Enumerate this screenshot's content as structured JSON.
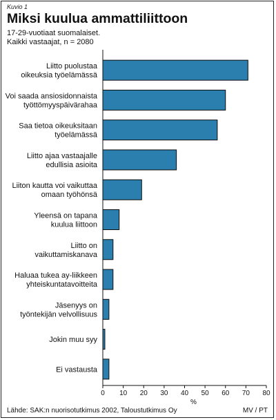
{
  "figure_label": "Kuvio 1",
  "subtitle_lines": [
    "17-29-vuotiaat suomalaiset.",
    "Kaikki vastaajat, n = 2080"
  ],
  "footer": {
    "source": "Lähde: SAK:n nuorisotutkimus 2002, Taloustutkimus Oy",
    "credit": "MV / PT"
  },
  "colors": {
    "bar_fill": "#2a7fae",
    "bar_stroke": "#0d0d0d",
    "axis": "#111111"
  },
  "chart_data": {
    "type": "bar",
    "orientation": "horizontal",
    "title": "Miksi kuulua ammattiliittoon",
    "xlabel": "%",
    "ylabel": "",
    "xlim": [
      0,
      80
    ],
    "xticks": [
      0,
      10,
      20,
      30,
      40,
      50,
      60,
      70,
      80
    ],
    "grid": false,
    "categories": [
      [
        "Liitto puolustaa",
        "oikeuksia työelämässä"
      ],
      [
        "Voi saada ansiosidonnaista",
        "työttömyyspäivärahaa"
      ],
      [
        "Saa tietoa oikeuksitaan",
        "työelämässä"
      ],
      [
        "Liitto ajaa vastaajalle",
        "edullisia asioita"
      ],
      [
        "Liiton kautta voi vaikuttaa",
        "omaan työhönsä"
      ],
      [
        "Yleensä on tapana",
        "kuulua liittoon"
      ],
      [
        "Liitto on",
        "vaikuttamiskanava"
      ],
      [
        "Haluaa tukea ay-liikkeen",
        "yhteiskuntatavoitteita"
      ],
      [
        "Jäsenyys on",
        "työntekijän velvollisuus"
      ],
      [
        "Jokin muu syy"
      ],
      [
        "Ei vastausta"
      ]
    ],
    "values": [
      71,
      60,
      56,
      36,
      19,
      8,
      5,
      5,
      3,
      1,
      3
    ]
  }
}
